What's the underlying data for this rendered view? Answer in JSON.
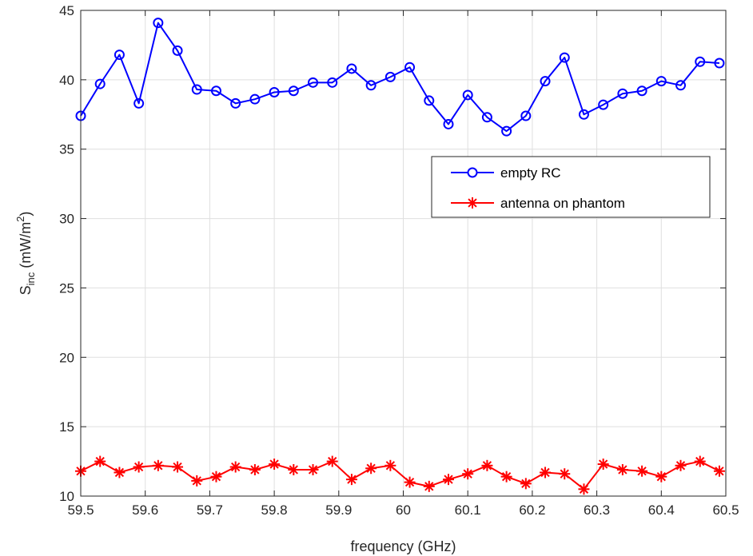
{
  "chart_data": {
    "type": "line",
    "xlabel": "frequency (GHz)",
    "ylabel": {
      "base": "S",
      "sub": "inc",
      "unit_pre": " (mW/m",
      "unit_sup": "2",
      "unit_post": ")"
    },
    "xlim": [
      59.5,
      60.5
    ],
    "ylim": [
      10,
      45
    ],
    "x_ticks": [
      59.5,
      59.6,
      59.7,
      59.8,
      59.9,
      60,
      60.1,
      60.2,
      60.3,
      60.4,
      60.5
    ],
    "x_tick_labels": [
      "59.5",
      "59.6",
      "59.7",
      "59.8",
      "59.9",
      "60",
      "60.1",
      "60.2",
      "60.3",
      "60.4",
      "60.5"
    ],
    "y_ticks": [
      10,
      15,
      20,
      25,
      30,
      35,
      40,
      45
    ],
    "y_tick_labels": [
      "10",
      "15",
      "20",
      "25",
      "30",
      "35",
      "40",
      "45"
    ],
    "grid": true,
    "legend_position": "right, upper-middle",
    "x": [
      59.5,
      59.53,
      59.56,
      59.59,
      59.62,
      59.65,
      59.68,
      59.71,
      59.74,
      59.77,
      59.8,
      59.83,
      59.86,
      59.89,
      59.92,
      59.95,
      59.98,
      60.01,
      60.04,
      60.07,
      60.1,
      60.13,
      60.16,
      60.19,
      60.22,
      60.25,
      60.28,
      60.31,
      60.34,
      60.37,
      60.4,
      60.43,
      60.46,
      60.49
    ],
    "series": [
      {
        "name": "empty RC",
        "color": "#0000ff",
        "marker": "circle",
        "values": [
          37.4,
          39.7,
          41.8,
          38.3,
          44.1,
          42.1,
          39.3,
          39.2,
          38.3,
          38.6,
          39.1,
          39.2,
          39.8,
          39.8,
          40.8,
          39.6,
          40.2,
          40.9,
          38.5,
          36.8,
          38.9,
          37.3,
          36.3,
          37.4,
          39.9,
          41.6,
          37.5,
          38.2,
          39.0,
          39.2,
          39.9,
          39.6,
          41.3,
          41.2
        ]
      },
      {
        "name": "antenna on phantom",
        "color": "#ff0000",
        "marker": "asterisk",
        "values": [
          11.8,
          12.5,
          11.7,
          12.1,
          12.2,
          12.1,
          11.1,
          11.4,
          12.1,
          11.9,
          12.3,
          11.9,
          11.9,
          12.5,
          11.2,
          12.0,
          12.2,
          11.0,
          10.7,
          11.2,
          11.6,
          12.2,
          11.4,
          10.9,
          11.7,
          11.6,
          10.5,
          12.3,
          11.9,
          11.8,
          11.4,
          12.2,
          12.5,
          11.8
        ]
      }
    ]
  }
}
